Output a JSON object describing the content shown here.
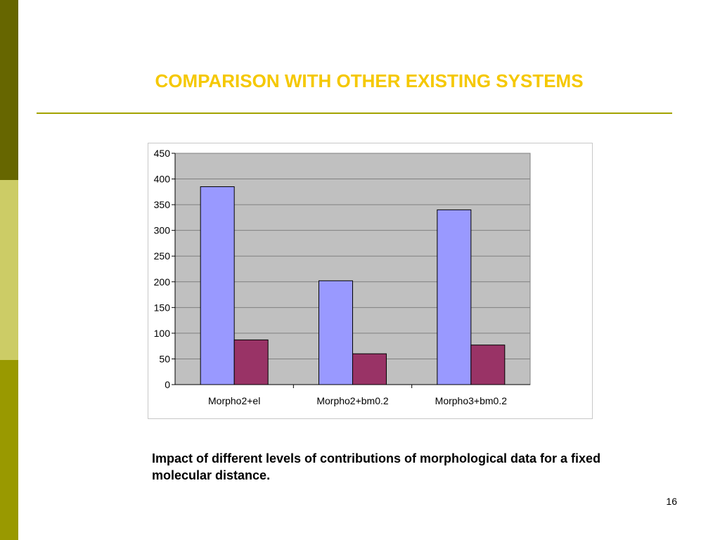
{
  "slide": {
    "title": "COMPARISON WITH OTHER EXISTING SYSTEMS",
    "caption": "Impact of different levels of contributions of morphological data for a fixed molecular distance.",
    "page_number": "16",
    "colors": {
      "title": "#f5c800",
      "rule": "#a3a300",
      "sidebar_top": "#666600",
      "sidebar_mid": "#cccc66",
      "sidebar_bottom": "#999900"
    }
  },
  "chart_data": {
    "type": "bar",
    "categories": [
      "Morpho2+el",
      "Morpho2+bm0.2",
      "Morpho3+bm0.2"
    ],
    "series": [
      {
        "values": [
          385,
          202,
          340
        ],
        "color": "#9999ff"
      },
      {
        "values": [
          87,
          60,
          77
        ],
        "color": "#993366"
      }
    ],
    "ylim": [
      0,
      450
    ],
    "yticks": [
      0,
      50,
      100,
      150,
      200,
      250,
      300,
      350,
      400,
      450
    ],
    "grid": true,
    "plot_background": "#c0c0c0",
    "legend": "none"
  }
}
